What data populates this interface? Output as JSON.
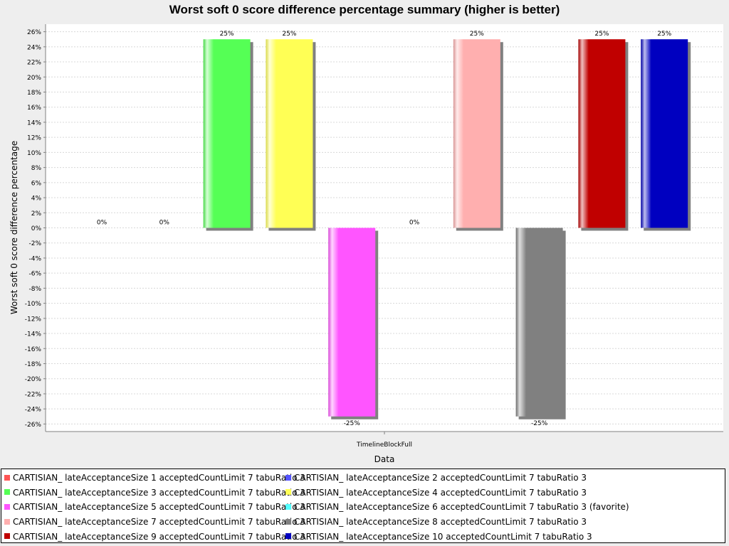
{
  "chart_data": {
    "type": "bar",
    "title": "Worst soft 0 score difference percentage summary (higher is better)",
    "xlabel": "Data",
    "ylabel": "Worst soft 0 score difference percentage",
    "categories": [
      "TimelineBlockFull"
    ],
    "ylim": [
      -27,
      27
    ],
    "y_ticks": [
      26,
      24,
      22,
      20,
      18,
      16,
      14,
      12,
      10,
      8,
      6,
      4,
      2,
      0,
      -2,
      -4,
      -6,
      -8,
      -10,
      -12,
      -14,
      -16,
      -18,
      -20,
      -22,
      -24,
      -26
    ],
    "y_tick_suffix": "%",
    "grid": true,
    "legend_position": "bottom",
    "series": [
      {
        "name": "CARTISIAN_ lateAcceptanceSize 1 acceptedCountLimit 7 tabuRatio 3",
        "values": [
          0
        ],
        "label": "0%",
        "color": "#ff5555"
      },
      {
        "name": "CARTISIAN_ lateAcceptanceSize 2 acceptedCountLimit 7 tabuRatio 3",
        "values": [
          0
        ],
        "label": "0%",
        "color": "#5555ff"
      },
      {
        "name": "CARTISIAN_ lateAcceptanceSize 3 acceptedCountLimit 7 tabuRatio 3",
        "values": [
          25
        ],
        "label": "25%",
        "color": "#55ff55"
      },
      {
        "name": "CARTISIAN_ lateAcceptanceSize 4 acceptedCountLimit 7 tabuRatio 3",
        "values": [
          25
        ],
        "label": "25%",
        "color": "#ffff55"
      },
      {
        "name": "CARTISIAN_ lateAcceptanceSize 5 acceptedCountLimit 7 tabuRatio 3",
        "values": [
          -25
        ],
        "label": "-25%",
        "color": "#ff55ff"
      },
      {
        "name": "CARTISIAN_ lateAcceptanceSize 6 acceptedCountLimit 7 tabuRatio 3 (favorite)",
        "values": [
          0
        ],
        "label": "0%",
        "color": "#55ffff"
      },
      {
        "name": "CARTISIAN_ lateAcceptanceSize 7 acceptedCountLimit 7 tabuRatio 3",
        "values": [
          25
        ],
        "label": "25%",
        "color": "#ffafaf"
      },
      {
        "name": "CARTISIAN_ lateAcceptanceSize 8 acceptedCountLimit 7 tabuRatio 3",
        "values": [
          -25
        ],
        "label": "-25%",
        "color": "#808080"
      },
      {
        "name": "CARTISIAN_ lateAcceptanceSize 9 acceptedCountLimit 7 tabuRatio 3",
        "values": [
          25
        ],
        "label": "25%",
        "color": "#c00000"
      },
      {
        "name": "CARTISIAN_ lateAcceptanceSize 10 acceptedCountLimit 7 tabuRatio 3",
        "values": [
          25
        ],
        "label": "25%",
        "color": "#0000c0"
      }
    ]
  }
}
